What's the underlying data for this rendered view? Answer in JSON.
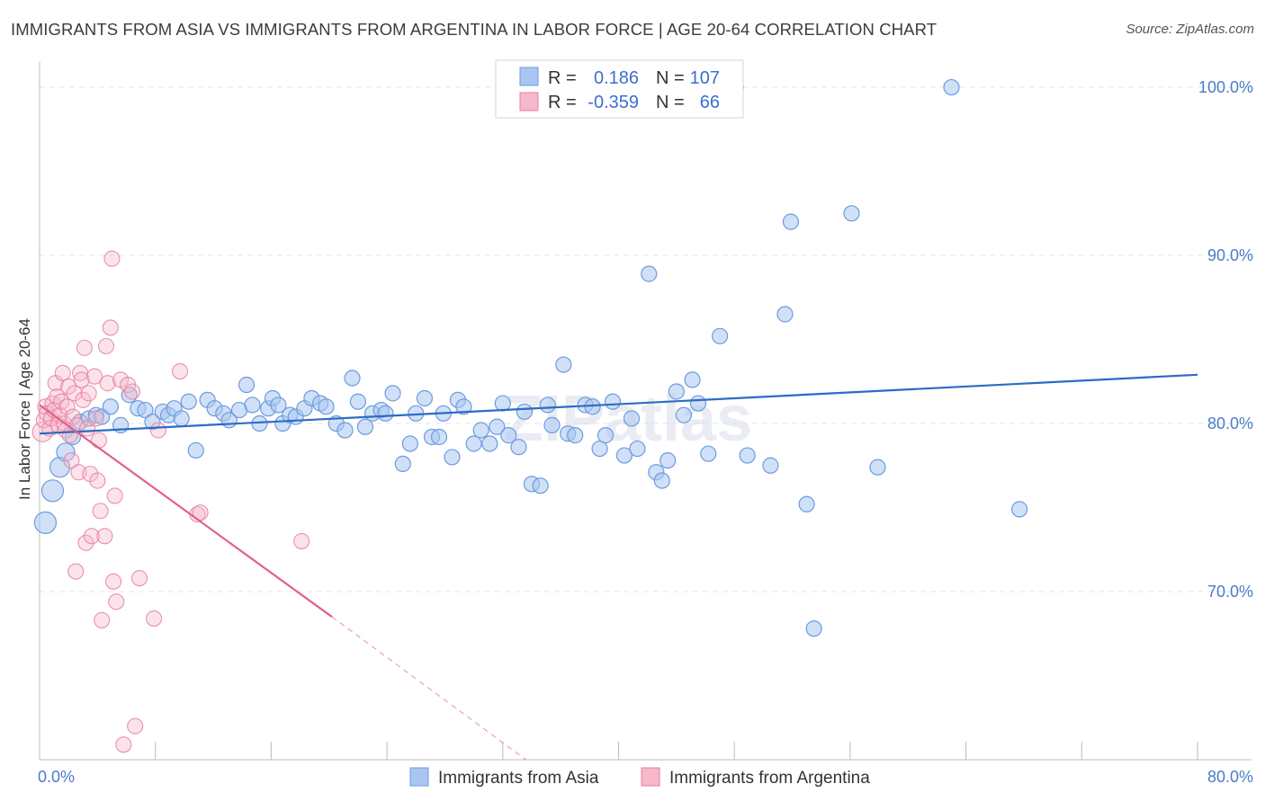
{
  "title": "IMMIGRANTS FROM ASIA VS IMMIGRANTS FROM ARGENTINA IN LABOR FORCE | AGE 20-64 CORRELATION CHART",
  "source": "Source: ZipAtlas.com",
  "watermark": "ZIPatlas",
  "colors": {
    "asia": "#6c9be0",
    "asia_fill": "#aac6f0",
    "argentina": "#e77fa0",
    "argentina_fill": "#f6b8ca",
    "asia_line": "#2c6cc4",
    "argentina_line": "#e0608d",
    "tick_text": "#4a7cc9"
  },
  "chart_data": {
    "type": "scatter",
    "xlabel": "",
    "ylabel": "In Labor Force | Age 20-64",
    "xlim": [
      0,
      80
    ],
    "ylim": [
      60,
      101.5
    ],
    "x_tick_labels": [
      {
        "value": 0,
        "label": "0.0%"
      },
      {
        "value": 80,
        "label": "80.0%"
      }
    ],
    "y_tick_labels": [
      {
        "value": 70,
        "label": "70.0%"
      },
      {
        "value": 80,
        "label": "80.0%"
      },
      {
        "value": 90,
        "label": "90.0%"
      },
      {
        "value": 100,
        "label": "100.0%"
      }
    ],
    "legend": {
      "position": "top-center",
      "rows": [
        {
          "r_label": "R =",
          "r_value": "0.186",
          "n_label": "N =",
          "n_value": "107"
        },
        {
          "r_label": "R =",
          "r_value": "-0.359",
          "n_label": "N =",
          "n_value": "66"
        }
      ]
    },
    "series": [
      {
        "name": "Immigrants from Asia",
        "trend": {
          "x": [
            0,
            80
          ],
          "y": [
            79.4,
            82.9
          ],
          "dashed_extension": false
        },
        "points": [
          [
            0.4,
            74.1
          ],
          [
            0.9,
            76.0
          ],
          [
            1.4,
            77.4
          ],
          [
            1.8,
            78.3
          ],
          [
            2.3,
            79.2
          ],
          [
            2.8,
            80.1
          ],
          [
            3.4,
            80.3
          ],
          [
            3.9,
            80.5
          ],
          [
            4.3,
            80.4
          ],
          [
            4.9,
            81.0
          ],
          [
            5.6,
            79.9
          ],
          [
            6.2,
            81.7
          ],
          [
            6.8,
            80.9
          ],
          [
            7.3,
            80.8
          ],
          [
            7.8,
            80.1
          ],
          [
            8.5,
            80.7
          ],
          [
            8.9,
            80.5
          ],
          [
            9.3,
            80.9
          ],
          [
            9.8,
            80.3
          ],
          [
            10.3,
            81.3
          ],
          [
            10.8,
            78.4
          ],
          [
            11.6,
            81.4
          ],
          [
            12.1,
            80.9
          ],
          [
            12.7,
            80.6
          ],
          [
            13.1,
            80.2
          ],
          [
            13.8,
            80.8
          ],
          [
            14.3,
            82.3
          ],
          [
            14.7,
            81.1
          ],
          [
            15.2,
            80.0
          ],
          [
            15.8,
            80.9
          ],
          [
            16.1,
            81.5
          ],
          [
            16.5,
            81.1
          ],
          [
            16.8,
            80.0
          ],
          [
            17.3,
            80.5
          ],
          [
            17.7,
            80.4
          ],
          [
            18.3,
            80.9
          ],
          [
            18.8,
            81.5
          ],
          [
            19.4,
            81.2
          ],
          [
            19.8,
            81.0
          ],
          [
            20.5,
            80.0
          ],
          [
            21.1,
            79.6
          ],
          [
            21.6,
            82.7
          ],
          [
            22.0,
            81.3
          ],
          [
            22.5,
            79.8
          ],
          [
            23.0,
            80.6
          ],
          [
            23.6,
            80.8
          ],
          [
            23.9,
            80.6
          ],
          [
            24.4,
            81.8
          ],
          [
            25.1,
            77.6
          ],
          [
            25.6,
            78.8
          ],
          [
            26.0,
            80.6
          ],
          [
            26.6,
            81.5
          ],
          [
            27.1,
            79.2
          ],
          [
            27.6,
            79.2
          ],
          [
            27.9,
            80.6
          ],
          [
            28.5,
            78.0
          ],
          [
            28.9,
            81.4
          ],
          [
            29.3,
            81.0
          ],
          [
            30.0,
            78.8
          ],
          [
            30.5,
            79.6
          ],
          [
            31.1,
            78.8
          ],
          [
            31.6,
            79.8
          ],
          [
            32.0,
            81.2
          ],
          [
            32.4,
            79.3
          ],
          [
            33.1,
            78.6
          ],
          [
            33.5,
            80.7
          ],
          [
            34.0,
            76.4
          ],
          [
            34.6,
            76.3
          ],
          [
            35.1,
            81.1
          ],
          [
            35.4,
            79.9
          ],
          [
            36.2,
            83.5
          ],
          [
            36.5,
            79.4
          ],
          [
            37.0,
            79.3
          ],
          [
            37.7,
            81.1
          ],
          [
            38.2,
            81.0
          ],
          [
            38.7,
            78.5
          ],
          [
            39.1,
            79.3
          ],
          [
            39.6,
            81.3
          ],
          [
            40.4,
            78.1
          ],
          [
            40.9,
            80.3
          ],
          [
            41.3,
            78.5
          ],
          [
            42.1,
            88.9
          ],
          [
            42.6,
            77.1
          ],
          [
            43.0,
            76.6
          ],
          [
            43.4,
            77.8
          ],
          [
            44.0,
            81.9
          ],
          [
            44.5,
            80.5
          ],
          [
            45.1,
            82.6
          ],
          [
            45.5,
            81.2
          ],
          [
            46.2,
            78.2
          ],
          [
            47.0,
            85.2
          ],
          [
            48.1,
            100.0
          ],
          [
            48.9,
            78.1
          ],
          [
            50.5,
            77.5
          ],
          [
            51.5,
            86.5
          ],
          [
            51.9,
            92.0
          ],
          [
            53.0,
            75.2
          ],
          [
            53.5,
            67.8
          ],
          [
            56.1,
            92.5
          ],
          [
            57.9,
            77.4
          ],
          [
            63.0,
            100.0
          ],
          [
            67.7,
            74.9
          ]
        ]
      },
      {
        "name": "Immigrants from Argentina",
        "trend": {
          "x": [
            0,
            20.2
          ],
          "y": [
            81.1,
            68.5
          ],
          "dashed_x": [
            20.2,
            33.6
          ],
          "dashed_y": [
            68.5,
            60.0
          ]
        },
        "points": [
          [
            0.2,
            79.5
          ],
          [
            0.3,
            80.2
          ],
          [
            0.4,
            81.0
          ],
          [
            0.5,
            80.6
          ],
          [
            0.7,
            79.7
          ],
          [
            0.8,
            80.3
          ],
          [
            0.9,
            81.2
          ],
          [
            1.0,
            80.8
          ],
          [
            1.1,
            82.4
          ],
          [
            1.2,
            81.6
          ],
          [
            1.3,
            79.9
          ],
          [
            1.4,
            80.5
          ],
          [
            1.5,
            81.3
          ],
          [
            1.6,
            83.0
          ],
          [
            1.7,
            80.0
          ],
          [
            1.8,
            79.6
          ],
          [
            1.9,
            81.0
          ],
          [
            2.0,
            82.2
          ],
          [
            2.1,
            79.3
          ],
          [
            2.2,
            77.8
          ],
          [
            2.3,
            80.4
          ],
          [
            2.4,
            81.8
          ],
          [
            2.5,
            71.2
          ],
          [
            2.6,
            79.9
          ],
          [
            2.7,
            77.1
          ],
          [
            2.8,
            83.0
          ],
          [
            2.9,
            82.6
          ],
          [
            3.0,
            81.4
          ],
          [
            3.1,
            84.5
          ],
          [
            3.2,
            72.9
          ],
          [
            3.3,
            79.7
          ],
          [
            3.4,
            81.8
          ],
          [
            3.5,
            77.0
          ],
          [
            3.6,
            73.3
          ],
          [
            3.8,
            82.8
          ],
          [
            3.9,
            80.3
          ],
          [
            4.0,
            76.6
          ],
          [
            4.1,
            79.0
          ],
          [
            4.2,
            74.8
          ],
          [
            4.3,
            68.3
          ],
          [
            4.5,
            73.3
          ],
          [
            4.6,
            84.6
          ],
          [
            4.7,
            82.4
          ],
          [
            4.9,
            85.7
          ],
          [
            5.0,
            89.8
          ],
          [
            5.1,
            70.6
          ],
          [
            5.2,
            75.7
          ],
          [
            5.3,
            69.4
          ],
          [
            5.6,
            82.6
          ],
          [
            5.8,
            60.9
          ],
          [
            6.1,
            82.3
          ],
          [
            6.4,
            81.9
          ],
          [
            6.6,
            62.0
          ],
          [
            6.9,
            70.8
          ],
          [
            7.9,
            68.4
          ],
          [
            8.2,
            79.6
          ],
          [
            9.7,
            83.1
          ],
          [
            10.9,
            74.6
          ],
          [
            11.1,
            74.7
          ],
          [
            18.1,
            73.0
          ]
        ]
      }
    ]
  },
  "bottom_legend": [
    {
      "label": "Immigrants from Asia"
    },
    {
      "label": "Immigrants from Argentina"
    }
  ]
}
